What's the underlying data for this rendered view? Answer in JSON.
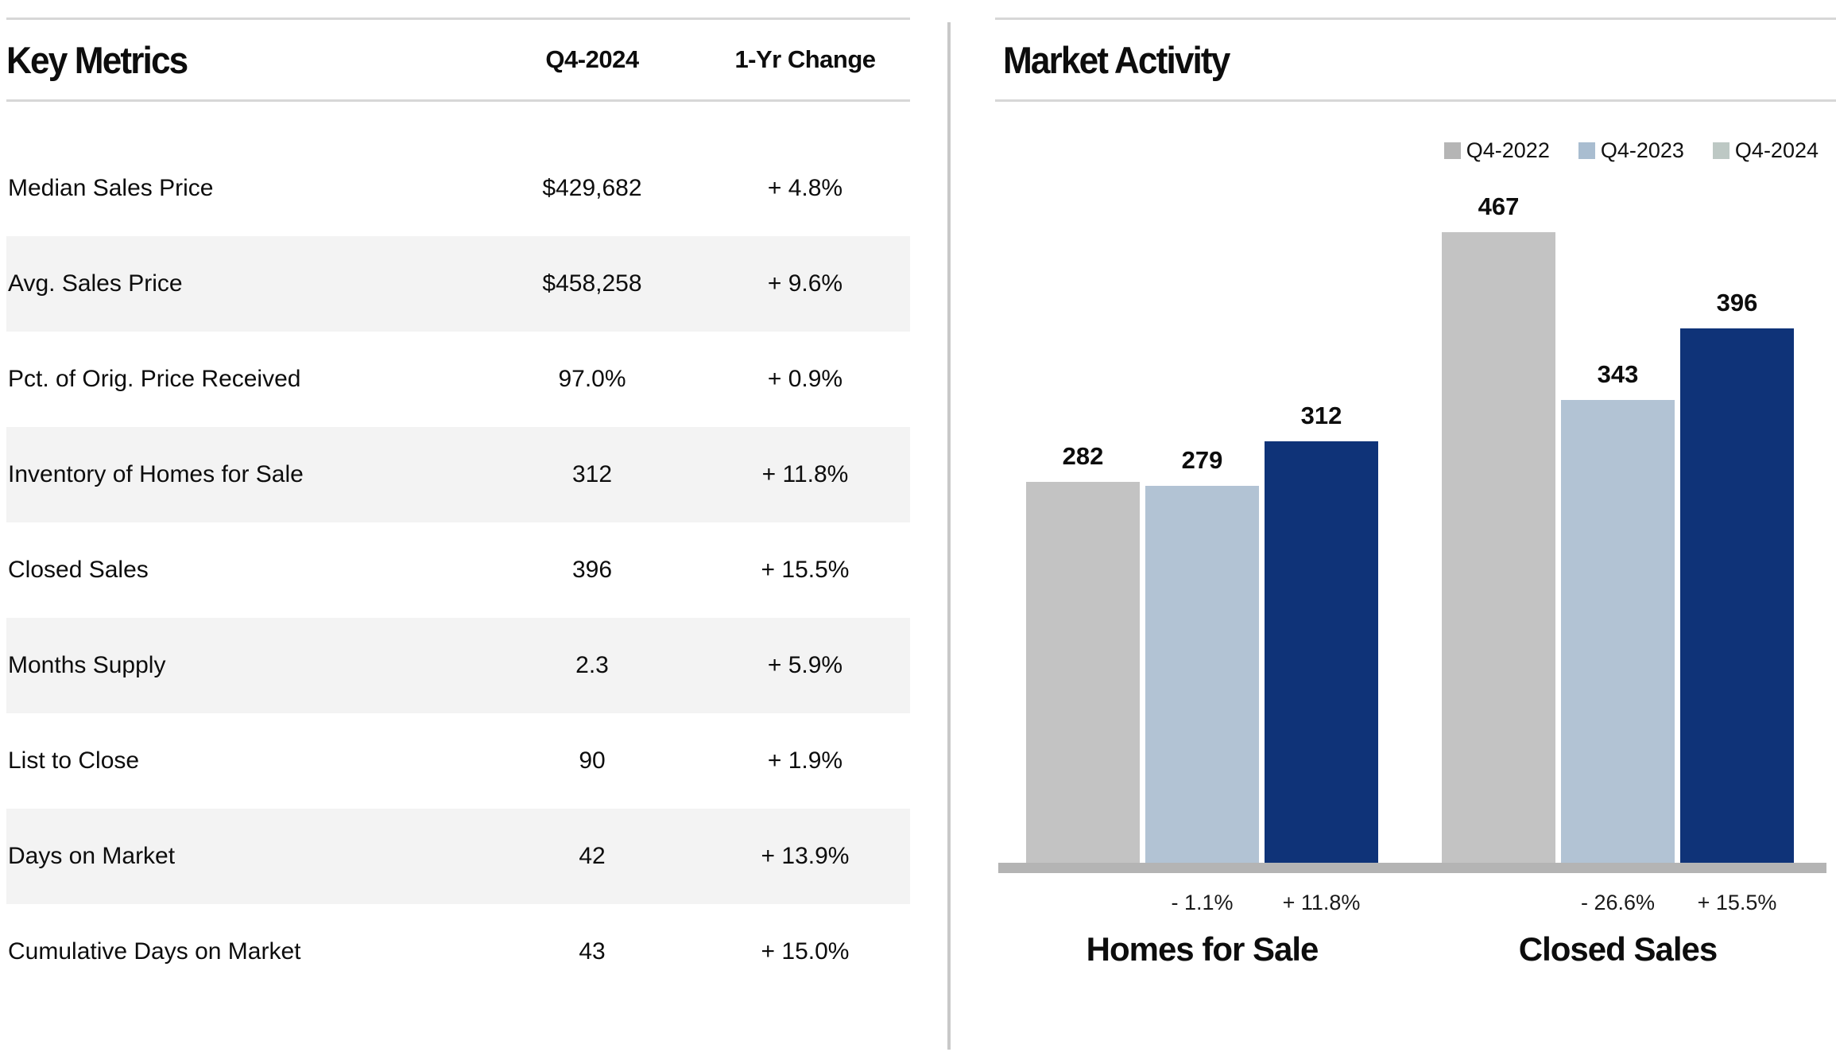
{
  "left_panel": {
    "title": "Key Metrics",
    "col_period": "Q4-2024",
    "col_change": "1-Yr Change",
    "rows": [
      {
        "label": "Median Sales Price",
        "value": "$429,682",
        "change": "+ 4.8%"
      },
      {
        "label": "Avg. Sales Price",
        "value": "$458,258",
        "change": "+ 9.6%"
      },
      {
        "label": "Pct. of Orig. Price Received",
        "value": "97.0%",
        "change": "+ 0.9%"
      },
      {
        "label": "Inventory of Homes for Sale",
        "value": "312",
        "change": "+ 11.8%"
      },
      {
        "label": "Closed Sales",
        "value": "396",
        "change": "+ 15.5%"
      },
      {
        "label": "Months Supply",
        "value": "2.3",
        "change": "+ 5.9%"
      },
      {
        "label": "List to Close",
        "value": "90",
        "change": "+ 1.9%"
      },
      {
        "label": "Days on Market",
        "value": "42",
        "change": "+ 13.9%"
      },
      {
        "label": "Cumulative Days on Market",
        "value": "43",
        "change": "+ 15.0%"
      }
    ]
  },
  "right_panel": {
    "title": "Market Activity",
    "legend": [
      {
        "label": "Q4-2022",
        "swatch_color": "#b5b5b5"
      },
      {
        "label": "Q4-2023",
        "swatch_color": "#a9bdd0"
      },
      {
        "label": "Q4-2024",
        "swatch_color": "#bdc8c4"
      }
    ],
    "chart_data": {
      "type": "bar",
      "title": "Market Activity",
      "categories": [
        "Homes for Sale",
        "Closed Sales"
      ],
      "series": [
        {
          "name": "Q4-2022",
          "color": "#c3c3c3",
          "values": [
            282,
            467
          ]
        },
        {
          "name": "Q4-2023",
          "color": "#b2c3d4",
          "values": [
            279,
            343
          ]
        },
        {
          "name": "Q4-2024",
          "color": "#0f3378",
          "values": [
            312,
            396
          ]
        }
      ],
      "pct_change_labels": [
        {
          "category": "Homes for Sale",
          "values": [
            "",
            "- 1.1%",
            "+ 11.8%"
          ]
        },
        {
          "category": "Closed Sales",
          "values": [
            "",
            "- 26.6%",
            "+ 15.5%"
          ]
        }
      ],
      "ylim": [
        0,
        467
      ],
      "grid": false,
      "data_labels": true,
      "legend_position": "top-right",
      "xlabel": "",
      "ylabel": ""
    }
  }
}
